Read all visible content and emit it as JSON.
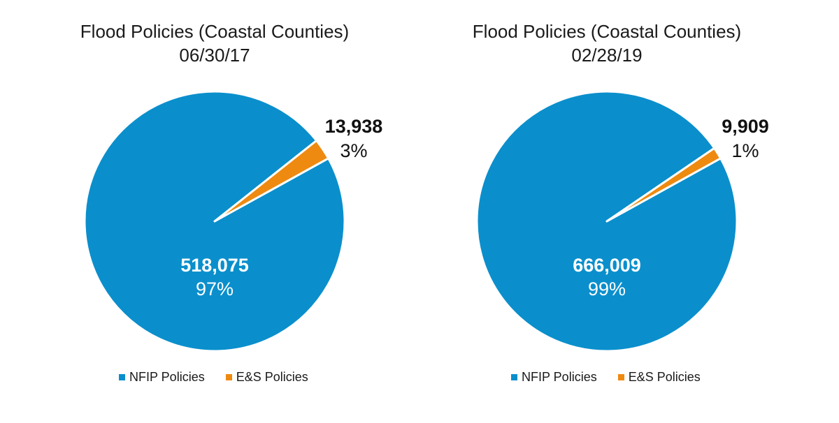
{
  "colors": {
    "nfip": "#0A8FCC",
    "es": "#EE8A10",
    "separator": "#FFFFFF"
  },
  "chart_data": [
    {
      "type": "pie",
      "title": "Flood Policies (Coastal Counties)",
      "subtitle": "06/30/17",
      "legend_position": "bottom",
      "slices": [
        {
          "name": "NFIP Policies",
          "value": 518075,
          "value_label": "518,075",
          "percent_label": "97%",
          "color": "#0A8FCC"
        },
        {
          "name": "E&S Policies",
          "value": 13938,
          "value_label": "13,938",
          "percent_label": "3%",
          "color": "#EE8A10"
        }
      ],
      "legend": [
        "NFIP Policies",
        "E&S Policies"
      ]
    },
    {
      "type": "pie",
      "title": "Flood Policies (Coastal Counties)",
      "subtitle": "02/28/19",
      "legend_position": "bottom",
      "slices": [
        {
          "name": "NFIP Policies",
          "value": 666009,
          "value_label": "666,009",
          "percent_label": "99%",
          "color": "#0A8FCC"
        },
        {
          "name": "E&S Policies",
          "value": 9909,
          "value_label": "9,909",
          "percent_label": "1%",
          "color": "#EE8A10"
        }
      ],
      "legend": [
        "NFIP Policies",
        "E&S Policies"
      ]
    }
  ]
}
